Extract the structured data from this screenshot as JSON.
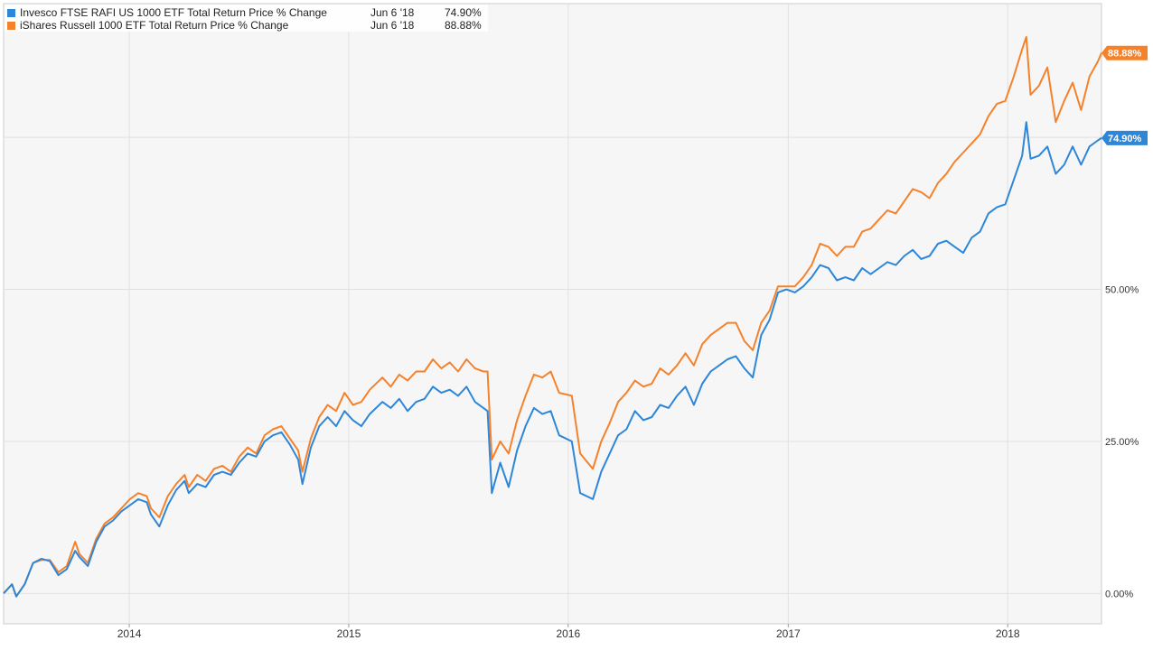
{
  "chart_data": {
    "type": "line",
    "title": "",
    "xlabel": "",
    "ylabel": "",
    "ylim": [
      -5,
      97
    ],
    "y_ticks": [
      0,
      25,
      50,
      75
    ],
    "y_tick_labels": [
      "0.00%",
      "25.00%",
      "50.00%",
      "75.00%"
    ],
    "x_range": [
      "2013-06-06",
      "2018-06-06"
    ],
    "x_ticks": [
      "2014-01-01",
      "2015-01-01",
      "2016-01-01",
      "2017-01-01",
      "2018-01-01"
    ],
    "x_tick_labels": [
      "2014",
      "2015",
      "2016",
      "2017",
      "2018"
    ],
    "grid": true,
    "legend_position": "top-left",
    "legend": [
      {
        "name": "Invesco FTSE RAFI US 1000 ETF Total Return Price % Change",
        "date": "Jun 6 '18",
        "value": "74.90%",
        "color": "#2e86d8"
      },
      {
        "name": "iShares Russell 1000 ETF Total Return Price % Change",
        "date": "Jun 6 '18",
        "value": "88.88%",
        "color": "#f5822b"
      }
    ],
    "end_labels": [
      {
        "text": "88.88%",
        "value": 88.88,
        "color": "#f5822b"
      },
      {
        "text": "74.90%",
        "value": 74.9,
        "color": "#2e86d8"
      }
    ],
    "series": [
      {
        "name": "Invesco FTSE RAFI US 1000 ETF Total Return Price % Change",
        "color": "#2e86d8",
        "points": [
          [
            "2013-06-06",
            0.0
          ],
          [
            "2013-06-20",
            1.5
          ],
          [
            "2013-06-27",
            -0.5
          ],
          [
            "2013-07-11",
            1.5
          ],
          [
            "2013-07-25",
            5.0
          ],
          [
            "2013-08-08",
            5.7
          ],
          [
            "2013-08-22",
            5.3
          ],
          [
            "2013-09-05",
            3.0
          ],
          [
            "2013-09-19",
            4.0
          ],
          [
            "2013-10-03",
            7.0
          ],
          [
            "2013-10-10",
            6.0
          ],
          [
            "2013-10-24",
            4.5
          ],
          [
            "2013-11-07",
            8.5
          ],
          [
            "2013-11-21",
            11.0
          ],
          [
            "2013-12-05",
            12.0
          ],
          [
            "2013-12-19",
            13.5
          ],
          [
            "2014-01-02",
            14.5
          ],
          [
            "2014-01-16",
            15.5
          ],
          [
            "2014-01-30",
            15.0
          ],
          [
            "2014-02-06",
            13.0
          ],
          [
            "2014-02-20",
            11.0
          ],
          [
            "2014-03-06",
            14.5
          ],
          [
            "2014-03-20",
            17.0
          ],
          [
            "2014-04-03",
            18.5
          ],
          [
            "2014-04-10",
            16.5
          ],
          [
            "2014-04-24",
            18.0
          ],
          [
            "2014-05-08",
            17.5
          ],
          [
            "2014-05-22",
            19.5
          ],
          [
            "2014-06-05",
            20.0
          ],
          [
            "2014-06-19",
            19.5
          ],
          [
            "2014-07-03",
            21.5
          ],
          [
            "2014-07-17",
            23.0
          ],
          [
            "2014-07-31",
            22.5
          ],
          [
            "2014-08-14",
            25.0
          ],
          [
            "2014-08-28",
            26.0
          ],
          [
            "2014-09-11",
            26.5
          ],
          [
            "2014-09-25",
            24.5
          ],
          [
            "2014-10-09",
            22.0
          ],
          [
            "2014-10-16",
            18.0
          ],
          [
            "2014-10-30",
            24.0
          ],
          [
            "2014-11-13",
            27.5
          ],
          [
            "2014-11-27",
            29.0
          ],
          [
            "2014-12-11",
            27.5
          ],
          [
            "2014-12-25",
            30.0
          ],
          [
            "2015-01-08",
            28.5
          ],
          [
            "2015-01-22",
            27.5
          ],
          [
            "2015-02-05",
            29.5
          ],
          [
            "2015-02-26",
            31.5
          ],
          [
            "2015-03-12",
            30.5
          ],
          [
            "2015-03-26",
            32.0
          ],
          [
            "2015-04-09",
            30.0
          ],
          [
            "2015-04-23",
            31.5
          ],
          [
            "2015-05-07",
            32.0
          ],
          [
            "2015-05-21",
            34.0
          ],
          [
            "2015-06-04",
            33.0
          ],
          [
            "2015-06-18",
            33.5
          ],
          [
            "2015-07-02",
            32.5
          ],
          [
            "2015-07-16",
            34.0
          ],
          [
            "2015-07-30",
            31.5
          ],
          [
            "2015-08-13",
            30.5
          ],
          [
            "2015-08-20",
            30.0
          ],
          [
            "2015-08-27",
            16.5
          ],
          [
            "2015-09-10",
            21.5
          ],
          [
            "2015-09-24",
            17.5
          ],
          [
            "2015-10-08",
            23.5
          ],
          [
            "2015-10-22",
            27.5
          ],
          [
            "2015-11-05",
            30.5
          ],
          [
            "2015-11-19",
            29.5
          ],
          [
            "2015-12-03",
            30.0
          ],
          [
            "2015-12-17",
            26.0
          ],
          [
            "2016-01-07",
            25.0
          ],
          [
            "2016-01-21",
            16.5
          ],
          [
            "2016-02-11",
            15.5
          ],
          [
            "2016-02-25",
            20.0
          ],
          [
            "2016-03-10",
            23.0
          ],
          [
            "2016-03-24",
            26.0
          ],
          [
            "2016-04-07",
            27.0
          ],
          [
            "2016-04-21",
            30.0
          ],
          [
            "2016-05-05",
            28.5
          ],
          [
            "2016-05-19",
            29.0
          ],
          [
            "2016-06-02",
            31.0
          ],
          [
            "2016-06-16",
            30.5
          ],
          [
            "2016-06-30",
            32.5
          ],
          [
            "2016-07-14",
            34.0
          ],
          [
            "2016-07-28",
            31.0
          ],
          [
            "2016-08-11",
            34.5
          ],
          [
            "2016-08-25",
            36.5
          ],
          [
            "2016-09-08",
            37.5
          ],
          [
            "2016-09-22",
            38.5
          ],
          [
            "2016-10-06",
            39.0
          ],
          [
            "2016-10-20",
            37.0
          ],
          [
            "2016-11-03",
            35.5
          ],
          [
            "2016-11-17",
            42.5
          ],
          [
            "2016-12-01",
            45.0
          ],
          [
            "2016-12-15",
            49.5
          ],
          [
            "2016-12-29",
            50.0
          ],
          [
            "2017-01-12",
            49.5
          ],
          [
            "2017-01-26",
            50.5
          ],
          [
            "2017-02-09",
            52.0
          ],
          [
            "2017-02-23",
            54.0
          ],
          [
            "2017-03-09",
            53.5
          ],
          [
            "2017-03-23",
            51.5
          ],
          [
            "2017-04-06",
            52.0
          ],
          [
            "2017-04-20",
            51.5
          ],
          [
            "2017-05-04",
            53.5
          ],
          [
            "2017-05-18",
            52.5
          ],
          [
            "2017-06-01",
            53.5
          ],
          [
            "2017-06-15",
            54.5
          ],
          [
            "2017-06-29",
            54.0
          ],
          [
            "2017-07-13",
            55.5
          ],
          [
            "2017-07-27",
            56.5
          ],
          [
            "2017-08-10",
            55.0
          ],
          [
            "2017-08-24",
            55.5
          ],
          [
            "2017-09-07",
            57.5
          ],
          [
            "2017-09-21",
            58.0
          ],
          [
            "2017-10-05",
            57.0
          ],
          [
            "2017-10-19",
            56.0
          ],
          [
            "2017-11-02",
            58.5
          ],
          [
            "2017-11-16",
            59.5
          ],
          [
            "2017-11-30",
            62.5
          ],
          [
            "2017-12-14",
            63.5
          ],
          [
            "2017-12-28",
            64.0
          ],
          [
            "2018-01-11",
            68.0
          ],
          [
            "2018-01-25",
            72.0
          ],
          [
            "2018-02-01",
            77.5
          ],
          [
            "2018-02-08",
            71.5
          ],
          [
            "2018-02-22",
            72.0
          ],
          [
            "2018-03-08",
            73.5
          ],
          [
            "2018-03-22",
            69.0
          ],
          [
            "2018-04-05",
            70.5
          ],
          [
            "2018-04-19",
            73.5
          ],
          [
            "2018-05-03",
            70.5
          ],
          [
            "2018-05-17",
            73.5
          ],
          [
            "2018-05-31",
            74.5
          ],
          [
            "2018-06-06",
            74.9
          ]
        ]
      },
      {
        "name": "iShares Russell 1000 ETF Total Return Price % Change",
        "color": "#f5822b",
        "points": [
          [
            "2013-06-06",
            0.0
          ],
          [
            "2013-06-20",
            1.5
          ],
          [
            "2013-06-27",
            -0.5
          ],
          [
            "2013-07-11",
            1.5
          ],
          [
            "2013-07-25",
            5.0
          ],
          [
            "2013-08-08",
            5.5
          ],
          [
            "2013-08-22",
            5.5
          ],
          [
            "2013-09-05",
            3.5
          ],
          [
            "2013-09-19",
            4.5
          ],
          [
            "2013-10-03",
            8.5
          ],
          [
            "2013-10-10",
            6.5
          ],
          [
            "2013-10-24",
            5.0
          ],
          [
            "2013-11-07",
            9.0
          ],
          [
            "2013-11-21",
            11.5
          ],
          [
            "2013-12-05",
            12.5
          ],
          [
            "2013-12-19",
            14.0
          ],
          [
            "2014-01-02",
            15.5
          ],
          [
            "2014-01-16",
            16.5
          ],
          [
            "2014-01-30",
            16.0
          ],
          [
            "2014-02-06",
            14.0
          ],
          [
            "2014-02-20",
            12.5
          ],
          [
            "2014-03-06",
            16.0
          ],
          [
            "2014-03-20",
            18.0
          ],
          [
            "2014-04-03",
            19.5
          ],
          [
            "2014-04-10",
            17.5
          ],
          [
            "2014-04-24",
            19.5
          ],
          [
            "2014-05-08",
            18.5
          ],
          [
            "2014-05-22",
            20.5
          ],
          [
            "2014-06-05",
            21.0
          ],
          [
            "2014-06-19",
            20.0
          ],
          [
            "2014-07-03",
            22.5
          ],
          [
            "2014-07-17",
            24.0
          ],
          [
            "2014-07-31",
            23.0
          ],
          [
            "2014-08-14",
            26.0
          ],
          [
            "2014-08-28",
            27.0
          ],
          [
            "2014-09-11",
            27.5
          ],
          [
            "2014-09-25",
            25.5
          ],
          [
            "2014-10-09",
            23.5
          ],
          [
            "2014-10-16",
            20.0
          ],
          [
            "2014-10-30",
            25.5
          ],
          [
            "2014-11-13",
            29.0
          ],
          [
            "2014-11-27",
            31.0
          ],
          [
            "2014-12-11",
            30.0
          ],
          [
            "2014-12-25",
            33.0
          ],
          [
            "2015-01-08",
            31.0
          ],
          [
            "2015-01-22",
            31.5
          ],
          [
            "2015-02-05",
            33.5
          ],
          [
            "2015-02-26",
            35.5
          ],
          [
            "2015-03-12",
            34.0
          ],
          [
            "2015-03-26",
            36.0
          ],
          [
            "2015-04-09",
            35.0
          ],
          [
            "2015-04-23",
            36.5
          ],
          [
            "2015-05-07",
            36.5
          ],
          [
            "2015-05-21",
            38.5
          ],
          [
            "2015-06-04",
            37.0
          ],
          [
            "2015-06-18",
            38.0
          ],
          [
            "2015-07-02",
            36.5
          ],
          [
            "2015-07-16",
            38.5
          ],
          [
            "2015-07-30",
            37.0
          ],
          [
            "2015-08-13",
            36.5
          ],
          [
            "2015-08-20",
            36.5
          ],
          [
            "2015-08-27",
            22.0
          ],
          [
            "2015-09-10",
            25.0
          ],
          [
            "2015-09-24",
            23.0
          ],
          [
            "2015-10-08",
            28.5
          ],
          [
            "2015-10-22",
            32.5
          ],
          [
            "2015-11-05",
            36.0
          ],
          [
            "2015-11-19",
            35.5
          ],
          [
            "2015-12-03",
            36.5
          ],
          [
            "2015-12-17",
            33.0
          ],
          [
            "2016-01-07",
            32.5
          ],
          [
            "2016-01-21",
            23.0
          ],
          [
            "2016-02-11",
            20.5
          ],
          [
            "2016-02-25",
            25.0
          ],
          [
            "2016-03-10",
            28.0
          ],
          [
            "2016-03-24",
            31.5
          ],
          [
            "2016-04-07",
            33.0
          ],
          [
            "2016-04-21",
            35.0
          ],
          [
            "2016-05-05",
            34.0
          ],
          [
            "2016-05-19",
            34.5
          ],
          [
            "2016-06-02",
            37.0
          ],
          [
            "2016-06-16",
            36.0
          ],
          [
            "2016-06-30",
            37.5
          ],
          [
            "2016-07-14",
            39.5
          ],
          [
            "2016-07-28",
            37.5
          ],
          [
            "2016-08-11",
            41.0
          ],
          [
            "2016-08-25",
            42.5
          ],
          [
            "2016-09-08",
            43.5
          ],
          [
            "2016-09-22",
            44.5
          ],
          [
            "2016-10-06",
            44.5
          ],
          [
            "2016-10-20",
            41.5
          ],
          [
            "2016-11-03",
            40.0
          ],
          [
            "2016-11-17",
            44.5
          ],
          [
            "2016-12-01",
            46.5
          ],
          [
            "2016-12-15",
            50.5
          ],
          [
            "2016-12-29",
            50.5
          ],
          [
            "2017-01-12",
            50.5
          ],
          [
            "2017-01-26",
            52.0
          ],
          [
            "2017-02-09",
            54.0
          ],
          [
            "2017-02-23",
            57.5
          ],
          [
            "2017-03-09",
            57.0
          ],
          [
            "2017-03-23",
            55.5
          ],
          [
            "2017-04-06",
            57.0
          ],
          [
            "2017-04-20",
            57.0
          ],
          [
            "2017-05-04",
            59.5
          ],
          [
            "2017-05-18",
            60.0
          ],
          [
            "2017-06-01",
            61.5
          ],
          [
            "2017-06-15",
            63.0
          ],
          [
            "2017-06-29",
            62.5
          ],
          [
            "2017-07-13",
            64.5
          ],
          [
            "2017-07-27",
            66.5
          ],
          [
            "2017-08-10",
            66.0
          ],
          [
            "2017-08-24",
            65.0
          ],
          [
            "2017-09-07",
            67.5
          ],
          [
            "2017-09-21",
            69.0
          ],
          [
            "2017-10-05",
            71.0
          ],
          [
            "2017-10-19",
            72.5
          ],
          [
            "2017-11-02",
            74.0
          ],
          [
            "2017-11-16",
            75.5
          ],
          [
            "2017-11-30",
            78.5
          ],
          [
            "2017-12-14",
            80.5
          ],
          [
            "2017-12-28",
            81.0
          ],
          [
            "2018-01-11",
            85.0
          ],
          [
            "2018-01-25",
            89.5
          ],
          [
            "2018-02-01",
            91.5
          ],
          [
            "2018-02-08",
            82.0
          ],
          [
            "2018-02-22",
            83.5
          ],
          [
            "2018-03-08",
            86.5
          ],
          [
            "2018-03-22",
            77.5
          ],
          [
            "2018-04-05",
            81.0
          ],
          [
            "2018-04-19",
            84.0
          ],
          [
            "2018-05-03",
            79.5
          ],
          [
            "2018-05-17",
            85.0
          ],
          [
            "2018-05-31",
            87.5
          ],
          [
            "2018-06-06",
            88.88
          ]
        ]
      }
    ]
  }
}
